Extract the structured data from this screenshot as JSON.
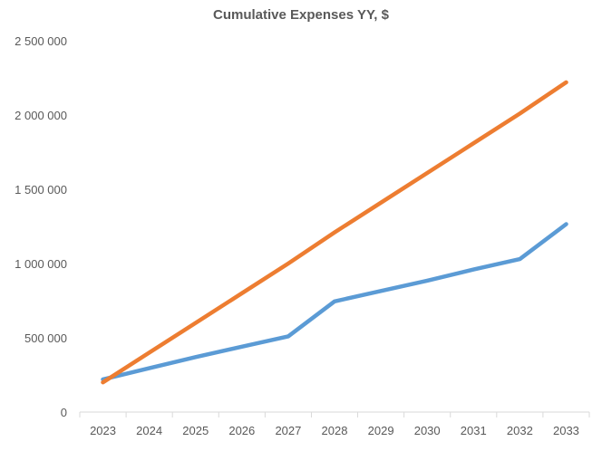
{
  "chart_data": {
    "type": "line",
    "title": "Cumulative Expenses YY, $",
    "xlabel": "",
    "ylabel": "",
    "x": [
      "2023",
      "2024",
      "2025",
      "2026",
      "2027",
      "2028",
      "2029",
      "2030",
      "2031",
      "2032",
      "2033"
    ],
    "ylim": [
      0,
      2500000
    ],
    "yticks": [
      0,
      500000,
      1000000,
      1500000,
      2000000,
      2500000
    ],
    "ytick_labels": [
      "0",
      "500 000",
      "1 000 000",
      "1 500 000",
      "2 000 000",
      "2 500 000"
    ],
    "grid": false,
    "legend": "none",
    "series": [
      {
        "color": "#5B9BD5",
        "values": [
          220000,
          295000,
          370000,
          440000,
          510000,
          745000,
          815000,
          885000,
          960000,
          1030000,
          1265000
        ]
      },
      {
        "color": "#ED7D31",
        "values": [
          200000,
          400000,
          600000,
          800000,
          1000000,
          1210000,
          1410000,
          1610000,
          1810000,
          2010000,
          2220000
        ]
      }
    ]
  }
}
